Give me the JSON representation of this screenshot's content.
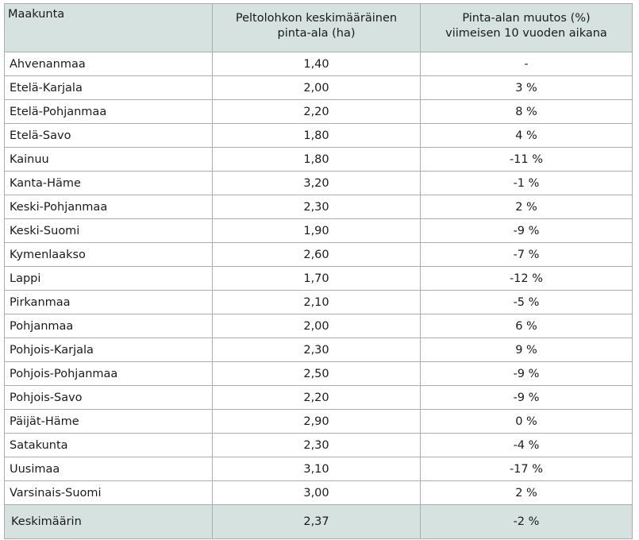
{
  "table": {
    "headers": {
      "region": "Maakunta",
      "area_line1": "Peltolohkon keskimääräinen",
      "area_line2": "pinta-ala (ha)",
      "change_line1": "Pinta-alan muutos (%)",
      "change_line2": "viimeisen 10 vuoden aikana"
    },
    "rows": [
      {
        "region": "Ahvenanmaa",
        "area": "1,40",
        "change": "-"
      },
      {
        "region": "Etelä-Karjala",
        "area": "2,00",
        "change": "3 %"
      },
      {
        "region": "Etelä-Pohjanmaa",
        "area": "2,20",
        "change": "8 %"
      },
      {
        "region": "Etelä-Savo",
        "area": "1,80",
        "change": "4 %"
      },
      {
        "region": "Kainuu",
        "area": "1,80",
        "change": "-11 %"
      },
      {
        "region": "Kanta-Häme",
        "area": "3,20",
        "change": "-1 %"
      },
      {
        "region": "Keski-Pohjanmaa",
        "area": "2,30",
        "change": "2 %"
      },
      {
        "region": "Keski-Suomi",
        "area": "1,90",
        "change": "-9 %"
      },
      {
        "region": "Kymenlaakso",
        "area": "2,60",
        "change": "-7 %"
      },
      {
        "region": "Lappi",
        "area": "1,70",
        "change": "-12 %"
      },
      {
        "region": "Pirkanmaa",
        "area": "2,10",
        "change": "-5 %"
      },
      {
        "region": "Pohjanmaa",
        "area": "2,00",
        "change": "6 %"
      },
      {
        "region": "Pohjois-Karjala",
        "area": "2,30",
        "change": "9 %"
      },
      {
        "region": "Pohjois-Pohjanmaa",
        "area": "2,50",
        "change": "-9 %"
      },
      {
        "region": "Pohjois-Savo",
        "area": "2,20",
        "change": "-9 %"
      },
      {
        "region": "Päijät-Häme",
        "area": "2,90",
        "change": "0 %"
      },
      {
        "region": "Satakunta",
        "area": "2,30",
        "change": "-4 %"
      },
      {
        "region": "Uusimaa",
        "area": "3,10",
        "change": "-17 %"
      },
      {
        "region": "Varsinais-Suomi",
        "area": "3,00",
        "change": "2 %"
      }
    ],
    "footer": {
      "region": "Keskimäärin",
      "area": "2,37",
      "change": "-2 %"
    },
    "colors": {
      "header_bg": "#d6e2df",
      "border": "#a8adaf"
    }
  }
}
